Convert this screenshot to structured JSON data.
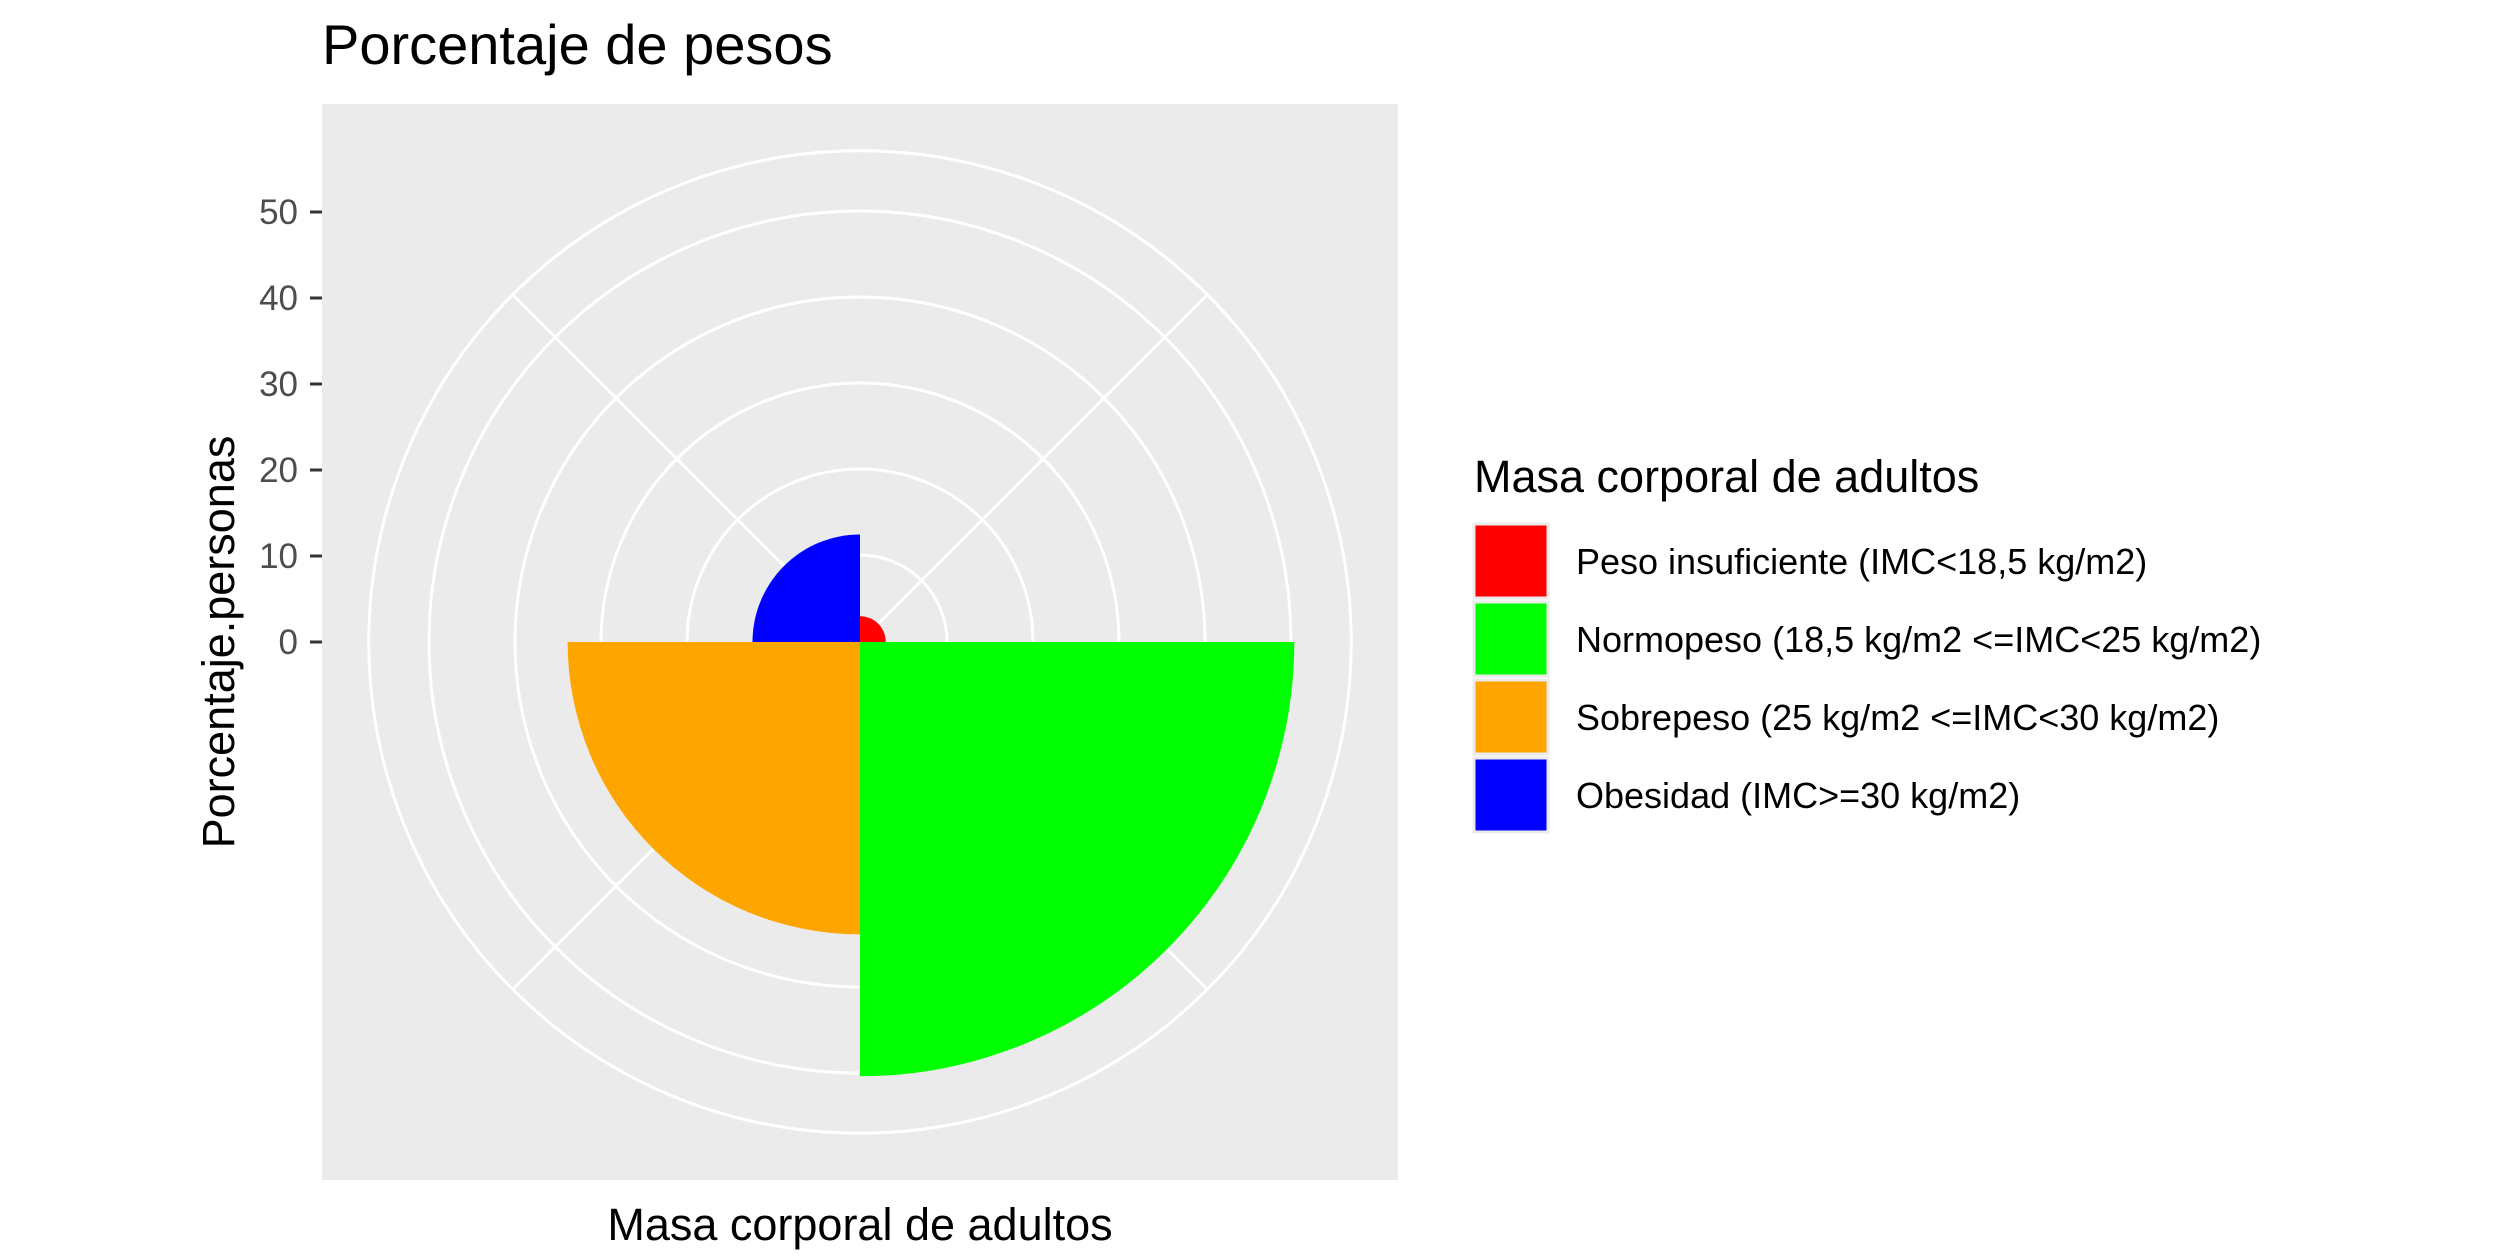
{
  "chart_data": {
    "type": "pie",
    "subtype": "polar-bar (coxcomb)",
    "title": "Porcentaje de pesos",
    "xlabel": "Masa corporal de adultos",
    "ylabel": "Porcentaje.personas",
    "radial_ticks": [
      0,
      10,
      20,
      30,
      40,
      50
    ],
    "radial_max": 57,
    "grid": true,
    "legend_position": "right",
    "categories": [
      "Peso insuficiente (IMC<18,5 kg/m2)",
      "Normopeso (18,5 kg/m2 <=IMC<25 kg/m2)",
      "Sobrepeso (25 kg/m2 <=IMC<30 kg/m2)",
      "Obesidad (IMC>=30 kg/m2)"
    ],
    "values": [
      3,
      50.5,
      34,
      12.5
    ],
    "colors": [
      "#ff0000",
      "#00ff00",
      "#ffa500",
      "#0000ff"
    ],
    "legend_title": "Masa corporal de adultos"
  }
}
